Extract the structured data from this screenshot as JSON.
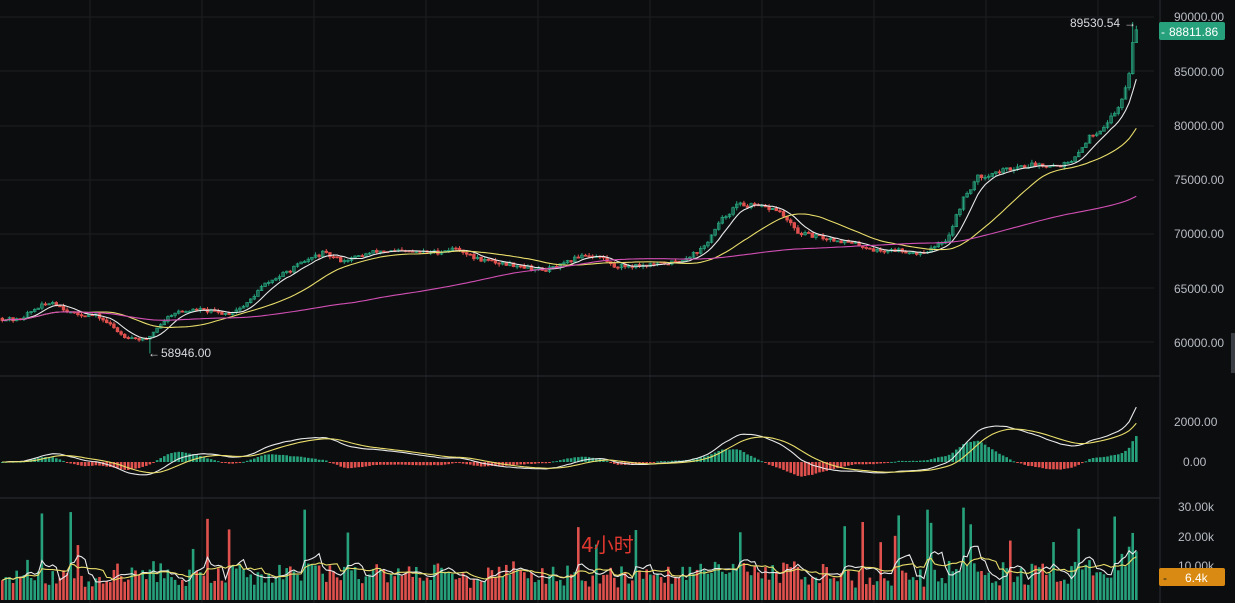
{
  "chart_data": {
    "type": "candlestick",
    "timeframe_label": "4小时",
    "colors": {
      "up": "#26a17b",
      "down": "#e0514e",
      "ma_fast": "#e8e8e8",
      "ma_mid": "#e8dd6a",
      "ma_slow": "#d14fb4",
      "price_tag_bg": "#26a17b",
      "volume_tag_bg": "#d98a12"
    },
    "price_axis": {
      "min": 57000,
      "max": 91000,
      "ticks": [
        "90000.00",
        "85000.00",
        "80000.00",
        "75000.00",
        "70000.00",
        "65000.00",
        "60000.00"
      ]
    },
    "macd_axis": {
      "ticks": [
        "2000.00",
        "0.00"
      ]
    },
    "volume_axis": {
      "ticks": [
        "30.00k",
        "20.00k",
        "10.00k"
      ]
    },
    "annotations": {
      "high_label": "89530.54",
      "low_label": "58946.00",
      "last_price": "88811.86",
      "last_volume": "6.4k"
    },
    "price_anchors": [
      [
        0,
        62200
      ],
      [
        20,
        62000
      ],
      [
        40,
        63200
      ],
      [
        55,
        63700
      ],
      [
        75,
        62600
      ],
      [
        100,
        62400
      ],
      [
        115,
        61400
      ],
      [
        125,
        60600
      ],
      [
        140,
        60300
      ],
      [
        148,
        60100
      ],
      [
        160,
        61400
      ],
      [
        175,
        62700
      ],
      [
        200,
        63000
      ],
      [
        230,
        62600
      ],
      [
        248,
        63400
      ],
      [
        265,
        65200
      ],
      [
        290,
        66500
      ],
      [
        310,
        67600
      ],
      [
        325,
        68200
      ],
      [
        345,
        67500
      ],
      [
        380,
        68400
      ],
      [
        420,
        68300
      ],
      [
        440,
        68300
      ],
      [
        460,
        68700
      ],
      [
        475,
        67800
      ],
      [
        500,
        67300
      ],
      [
        520,
        67100
      ],
      [
        545,
        66600
      ],
      [
        565,
        67100
      ],
      [
        585,
        68100
      ],
      [
        605,
        67800
      ],
      [
        615,
        67000
      ],
      [
        650,
        67100
      ],
      [
        680,
        67400
      ],
      [
        705,
        68600
      ],
      [
        725,
        71400
      ],
      [
        740,
        72700
      ],
      [
        760,
        72500
      ],
      [
        780,
        72200
      ],
      [
        800,
        70100
      ],
      [
        820,
        69700
      ],
      [
        840,
        69400
      ],
      [
        860,
        69000
      ],
      [
        880,
        68400
      ],
      [
        900,
        68500
      ],
      [
        920,
        68200
      ],
      [
        935,
        68600
      ],
      [
        950,
        69600
      ],
      [
        965,
        73100
      ],
      [
        980,
        75200
      ],
      [
        1000,
        75700
      ],
      [
        1020,
        76200
      ],
      [
        1040,
        76400
      ],
      [
        1060,
        76300
      ],
      [
        1075,
        76600
      ],
      [
        1090,
        78800
      ],
      [
        1105,
        79800
      ],
      [
        1120,
        81500
      ],
      [
        1130,
        84000
      ],
      [
        1137,
        88800
      ]
    ],
    "high_point": {
      "x": 1135,
      "y": 89530.54
    },
    "low_point": {
      "x": 148,
      "y": 58946.0
    }
  }
}
